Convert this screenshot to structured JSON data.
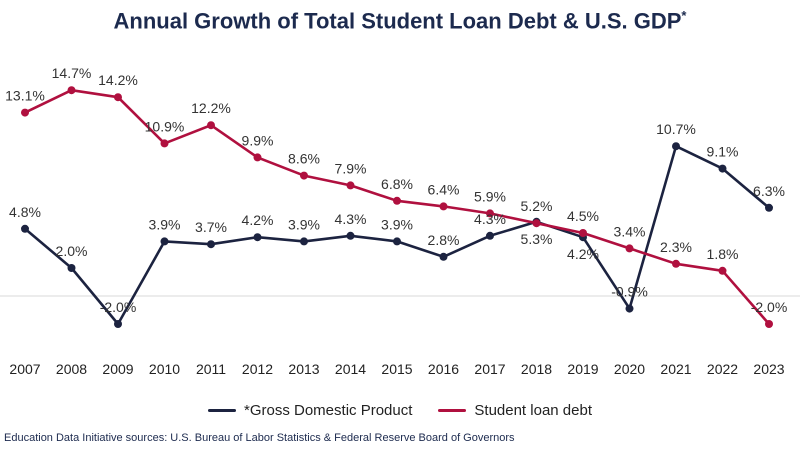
{
  "chart_data": {
    "type": "line",
    "title": "Annual Growth of Total Student Loan Debt & U.S. GDP",
    "title_mark": "*",
    "xlabel": "",
    "ylabel": "",
    "categories": [
      "2007",
      "2008",
      "2009",
      "2010",
      "2011",
      "2012",
      "2013",
      "2014",
      "2015",
      "2016",
      "2017",
      "2018",
      "2019",
      "2020",
      "2021",
      "2022",
      "2023"
    ],
    "ylim": [
      -3.0,
      16.0
    ],
    "grid": false,
    "legend_position": "bottom",
    "series": [
      {
        "name": "*Gross Domestic Product",
        "color": "#1c2340",
        "values": [
          4.8,
          2.0,
          -2.0,
          3.9,
          3.7,
          4.2,
          3.9,
          4.3,
          3.9,
          2.8,
          4.3,
          5.3,
          4.2,
          -0.9,
          10.7,
          9.1,
          6.3
        ],
        "labels": [
          "4.8%",
          "2.0%",
          "-2.0%",
          "3.9%",
          "3.7%",
          "4.2%",
          "3.9%",
          "4.3%",
          "3.9%",
          "2.8%",
          "4.3%",
          "5.3%",
          "4.2%",
          "-0.9%",
          "10.7%",
          "9.1%",
          "6.3%"
        ]
      },
      {
        "name": "Student loan debt",
        "color": "#b0103f",
        "values": [
          13.1,
          14.7,
          14.2,
          10.9,
          12.2,
          9.9,
          8.6,
          7.9,
          6.8,
          6.4,
          5.9,
          5.2,
          4.5,
          3.4,
          2.3,
          1.8,
          -2.0
        ],
        "labels": [
          "13.1%",
          "14.7%",
          "14.2%",
          "10.9%",
          "12.2%",
          "9.9%",
          "8.6%",
          "7.9%",
          "6.8%",
          "6.4%",
          "5.9%",
          "5.2%",
          "4.5%",
          "3.4%",
          "2.3%",
          "1.8%",
          "-2.0%"
        ]
      }
    ]
  },
  "source": "Education Data Initiative sources: U.S. Bureau of Labor Statistics & Federal Reserve Board of Governors"
}
